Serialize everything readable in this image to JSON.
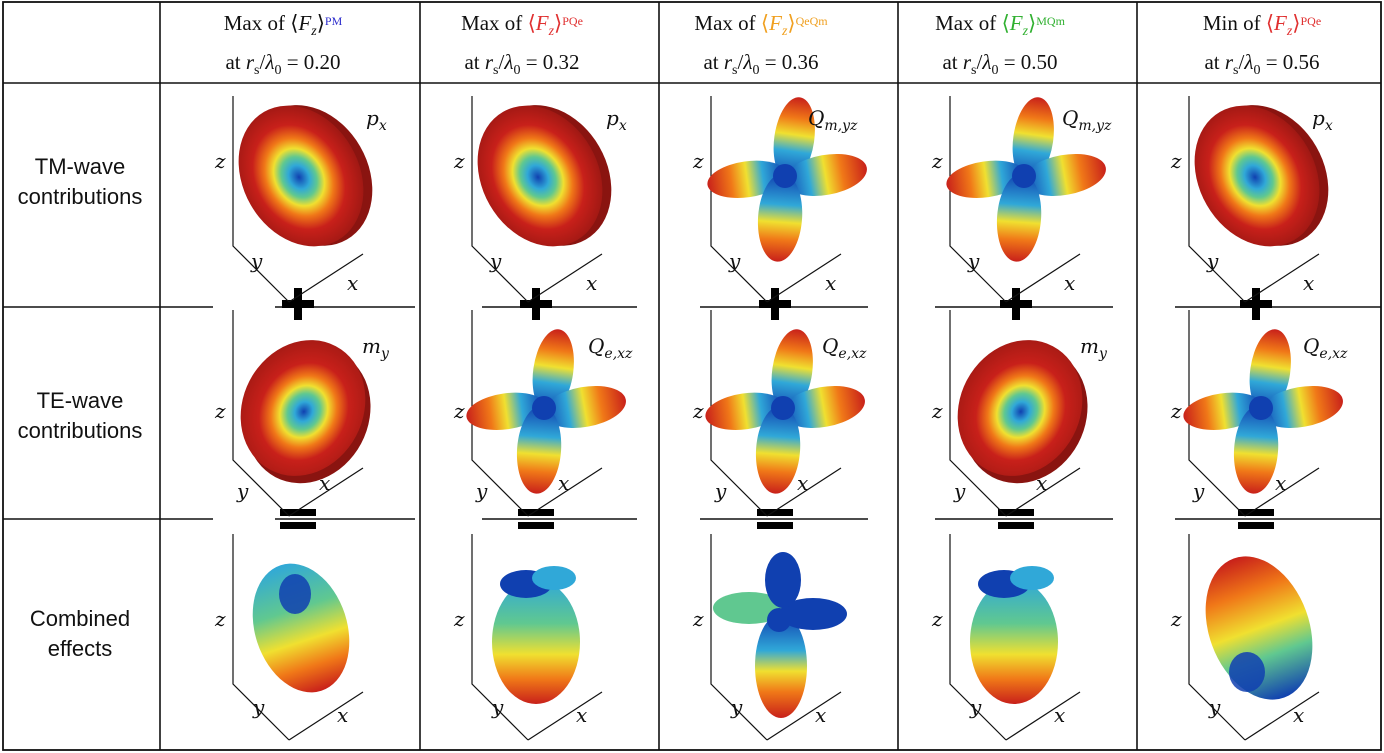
{
  "headers": [
    {
      "prefix": "Max of",
      "sup": "PM",
      "sup_color": "#2d2dcc",
      "line2": "at r_s/λ0 = 0.20",
      "r_value": "0.20"
    },
    {
      "prefix": "Max of",
      "sup": "PQe",
      "sup_color": "#e03030",
      "line2": "at r_s/λ0 = 0.32",
      "r_value": "0.32"
    },
    {
      "prefix": "Max of",
      "sup": "QeQm",
      "sup_color": "#f0a020",
      "line2": "at r_s/λ0 = 0.36",
      "r_value": "0.36"
    },
    {
      "prefix": "Max of",
      "sup": "MQm",
      "sup_color": "#30b030",
      "line2": "at r_s/λ0 = 0.50",
      "r_value": "0.50"
    },
    {
      "prefix": "Min of",
      "sup": "PQe",
      "sup_color": "#e03030",
      "line2": "at r_s/λ0 = 0.56",
      "r_value": "0.56"
    }
  ],
  "rows": [
    {
      "label_line1": "TM-wave",
      "label_line2": "contributions",
      "operator": "+"
    },
    {
      "label_line1": "TE-wave",
      "label_line2": "contributions",
      "operator": "="
    },
    {
      "label_line1": "Combined",
      "label_line2": "effects",
      "operator": ""
    }
  ],
  "cells": {
    "tm": [
      {
        "mode": "p",
        "sub": "x",
        "shape": "donut-dipole"
      },
      {
        "mode": "p",
        "sub": "x",
        "shape": "donut-dipole"
      },
      {
        "mode": "Q",
        "sub": "m,yz",
        "shape": "quad"
      },
      {
        "mode": "Q",
        "sub": "m,yz",
        "shape": "quad"
      },
      {
        "mode": "p",
        "sub": "x",
        "shape": "donut-dipole"
      }
    ],
    "te": [
      {
        "mode": "m",
        "sub": "y",
        "shape": "donut-dipole"
      },
      {
        "mode": "Q",
        "sub": "e,xz",
        "shape": "quad"
      },
      {
        "mode": "Q",
        "sub": "e,xz",
        "shape": "quad"
      },
      {
        "mode": "m",
        "sub": "y",
        "shape": "donut-dipole"
      },
      {
        "mode": "Q",
        "sub": "e,xz",
        "shape": "quad"
      }
    ],
    "combined": [
      {
        "shape": "egg-up"
      },
      {
        "shape": "egg-lobed"
      },
      {
        "shape": "egg-quad"
      },
      {
        "shape": "egg-lobed"
      },
      {
        "shape": "egg-down"
      }
    ]
  },
  "axes": {
    "x": "x",
    "y": "y",
    "z": "z"
  },
  "colors": {
    "red": "#c8201a",
    "orange": "#f07818",
    "yellow": "#f0e030",
    "green": "#60c890",
    "cyan": "#30a8d8",
    "blue": "#1040b0"
  }
}
